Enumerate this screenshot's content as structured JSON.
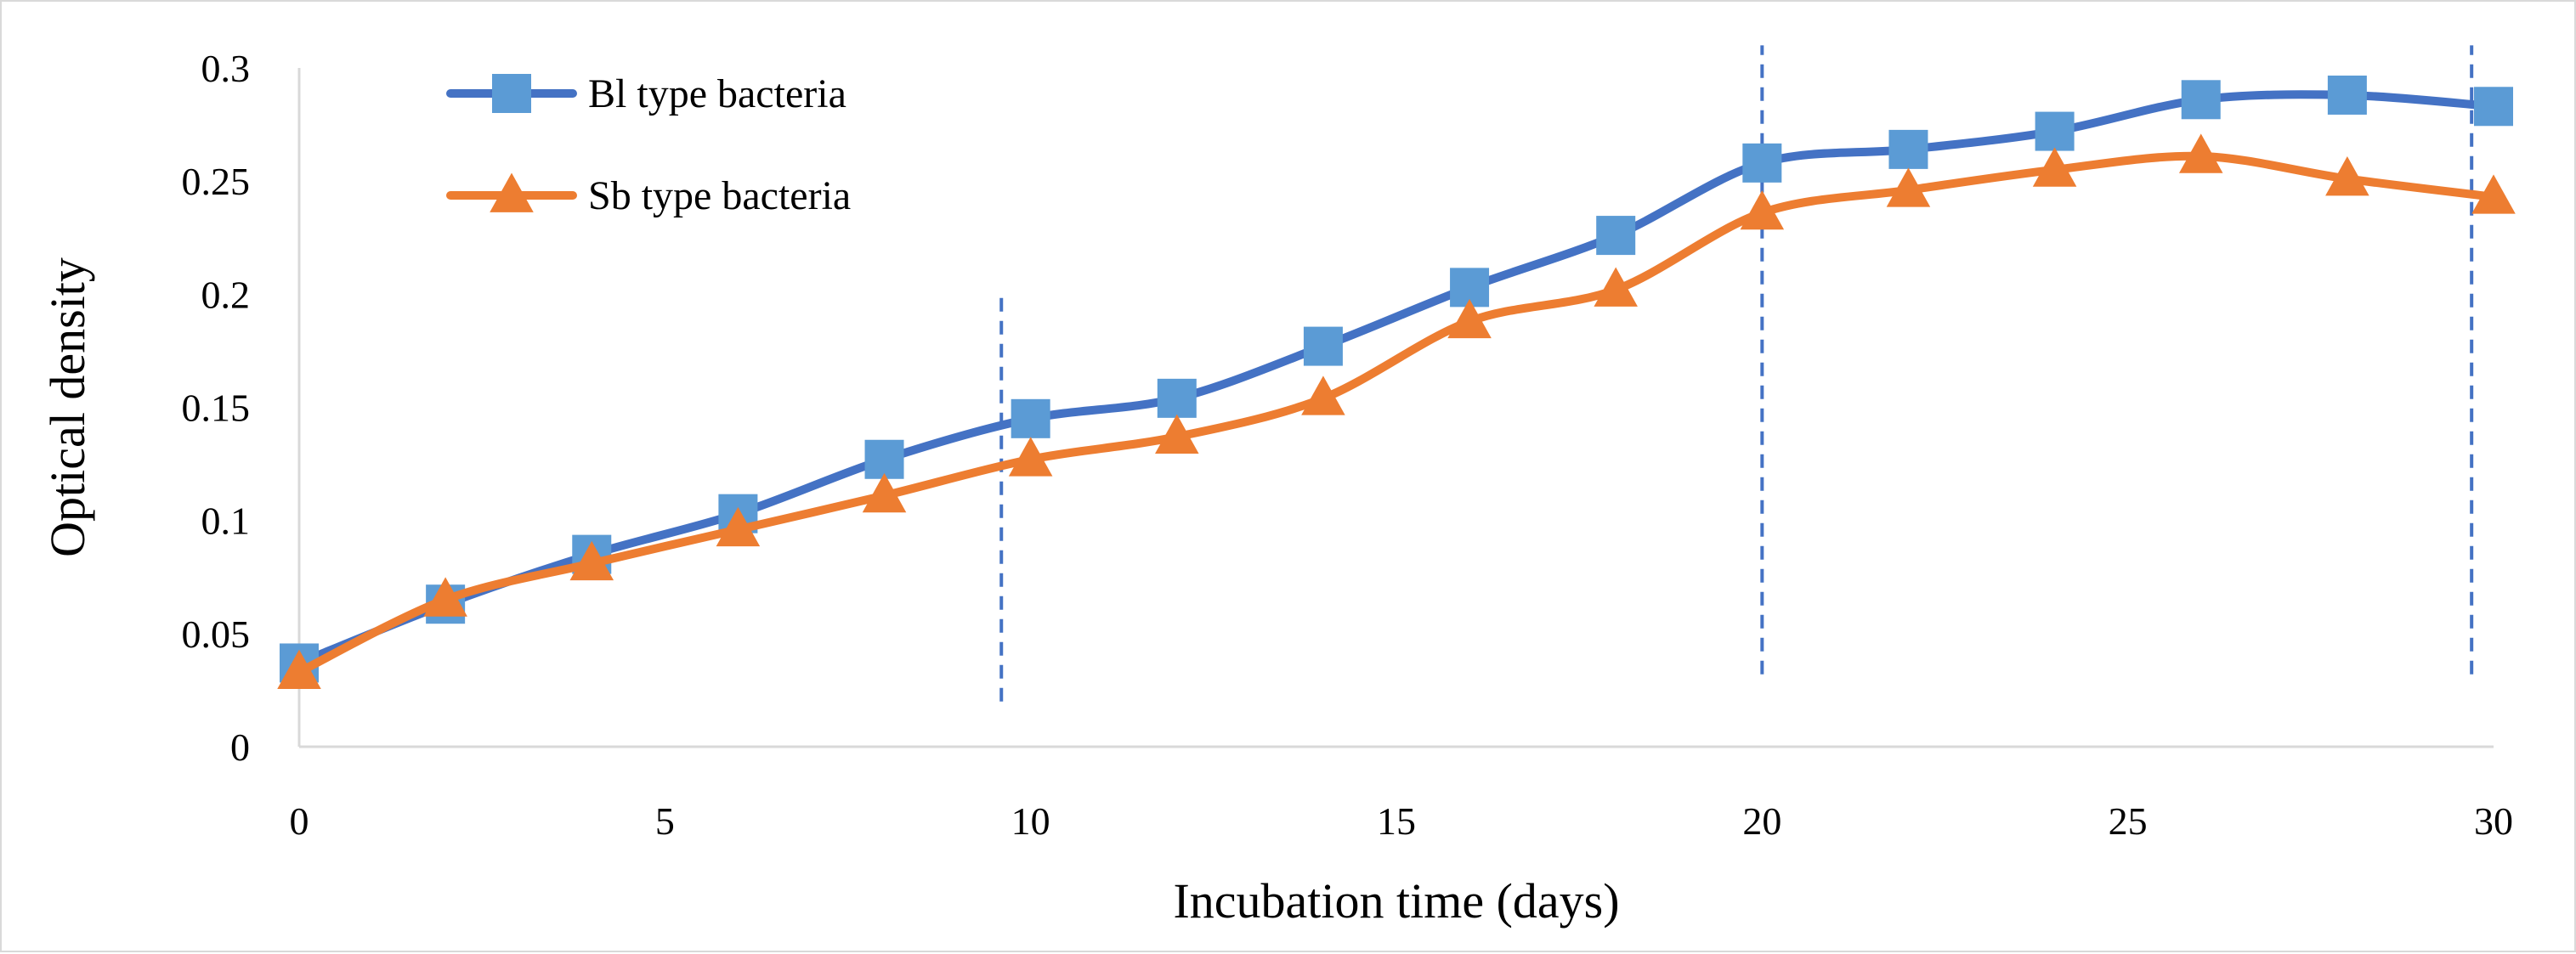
{
  "chart_data": {
    "type": "line",
    "title": "",
    "xlabel": "Incubation time (days)",
    "ylabel": "Optical density",
    "xlim": [
      0,
      30
    ],
    "ylim": [
      0,
      0.3
    ],
    "x_ticks": [
      "0",
      "5",
      "10",
      "15",
      "20",
      "25",
      "30"
    ],
    "y_ticks": [
      "0",
      "0.05",
      "0.1",
      "0.15",
      "0.2",
      "0.25",
      "0.3"
    ],
    "grid": false,
    "legend_position": "top-left",
    "smooth": true,
    "x": [
      0,
      2,
      4,
      6,
      8,
      10,
      12,
      14,
      16,
      18,
      20,
      22,
      24,
      26,
      28,
      30
    ],
    "series": [
      {
        "name": "Bl type bacteria",
        "marker": "square",
        "color": "#4472C4",
        "marker_color": "#5B9BD5",
        "values": [
          0.037,
          0.063,
          0.085,
          0.103,
          0.127,
          0.145,
          0.154,
          0.177,
          0.203,
          0.226,
          0.258,
          0.264,
          0.272,
          0.286,
          0.288,
          0.283
        ]
      },
      {
        "name": "Sb type bacteria",
        "marker": "triangle",
        "color": "#ED7D31",
        "marker_color": "#ED7D31",
        "values": [
          0.033,
          0.065,
          0.081,
          0.096,
          0.111,
          0.127,
          0.137,
          0.154,
          0.188,
          0.202,
          0.236,
          0.246,
          0.255,
          0.261,
          0.251,
          0.243
        ]
      }
    ],
    "reference_lines": [
      {
        "x": 9.6,
        "y_from": 0.02,
        "y_to": 0.202,
        "color": "#4472C4"
      },
      {
        "x": 20.0,
        "y_from": 0.032,
        "y_to": 0.31,
        "color": "#4472C4"
      },
      {
        "x": 29.7,
        "y_from": 0.032,
        "y_to": 0.31,
        "color": "#4472C4"
      }
    ]
  }
}
